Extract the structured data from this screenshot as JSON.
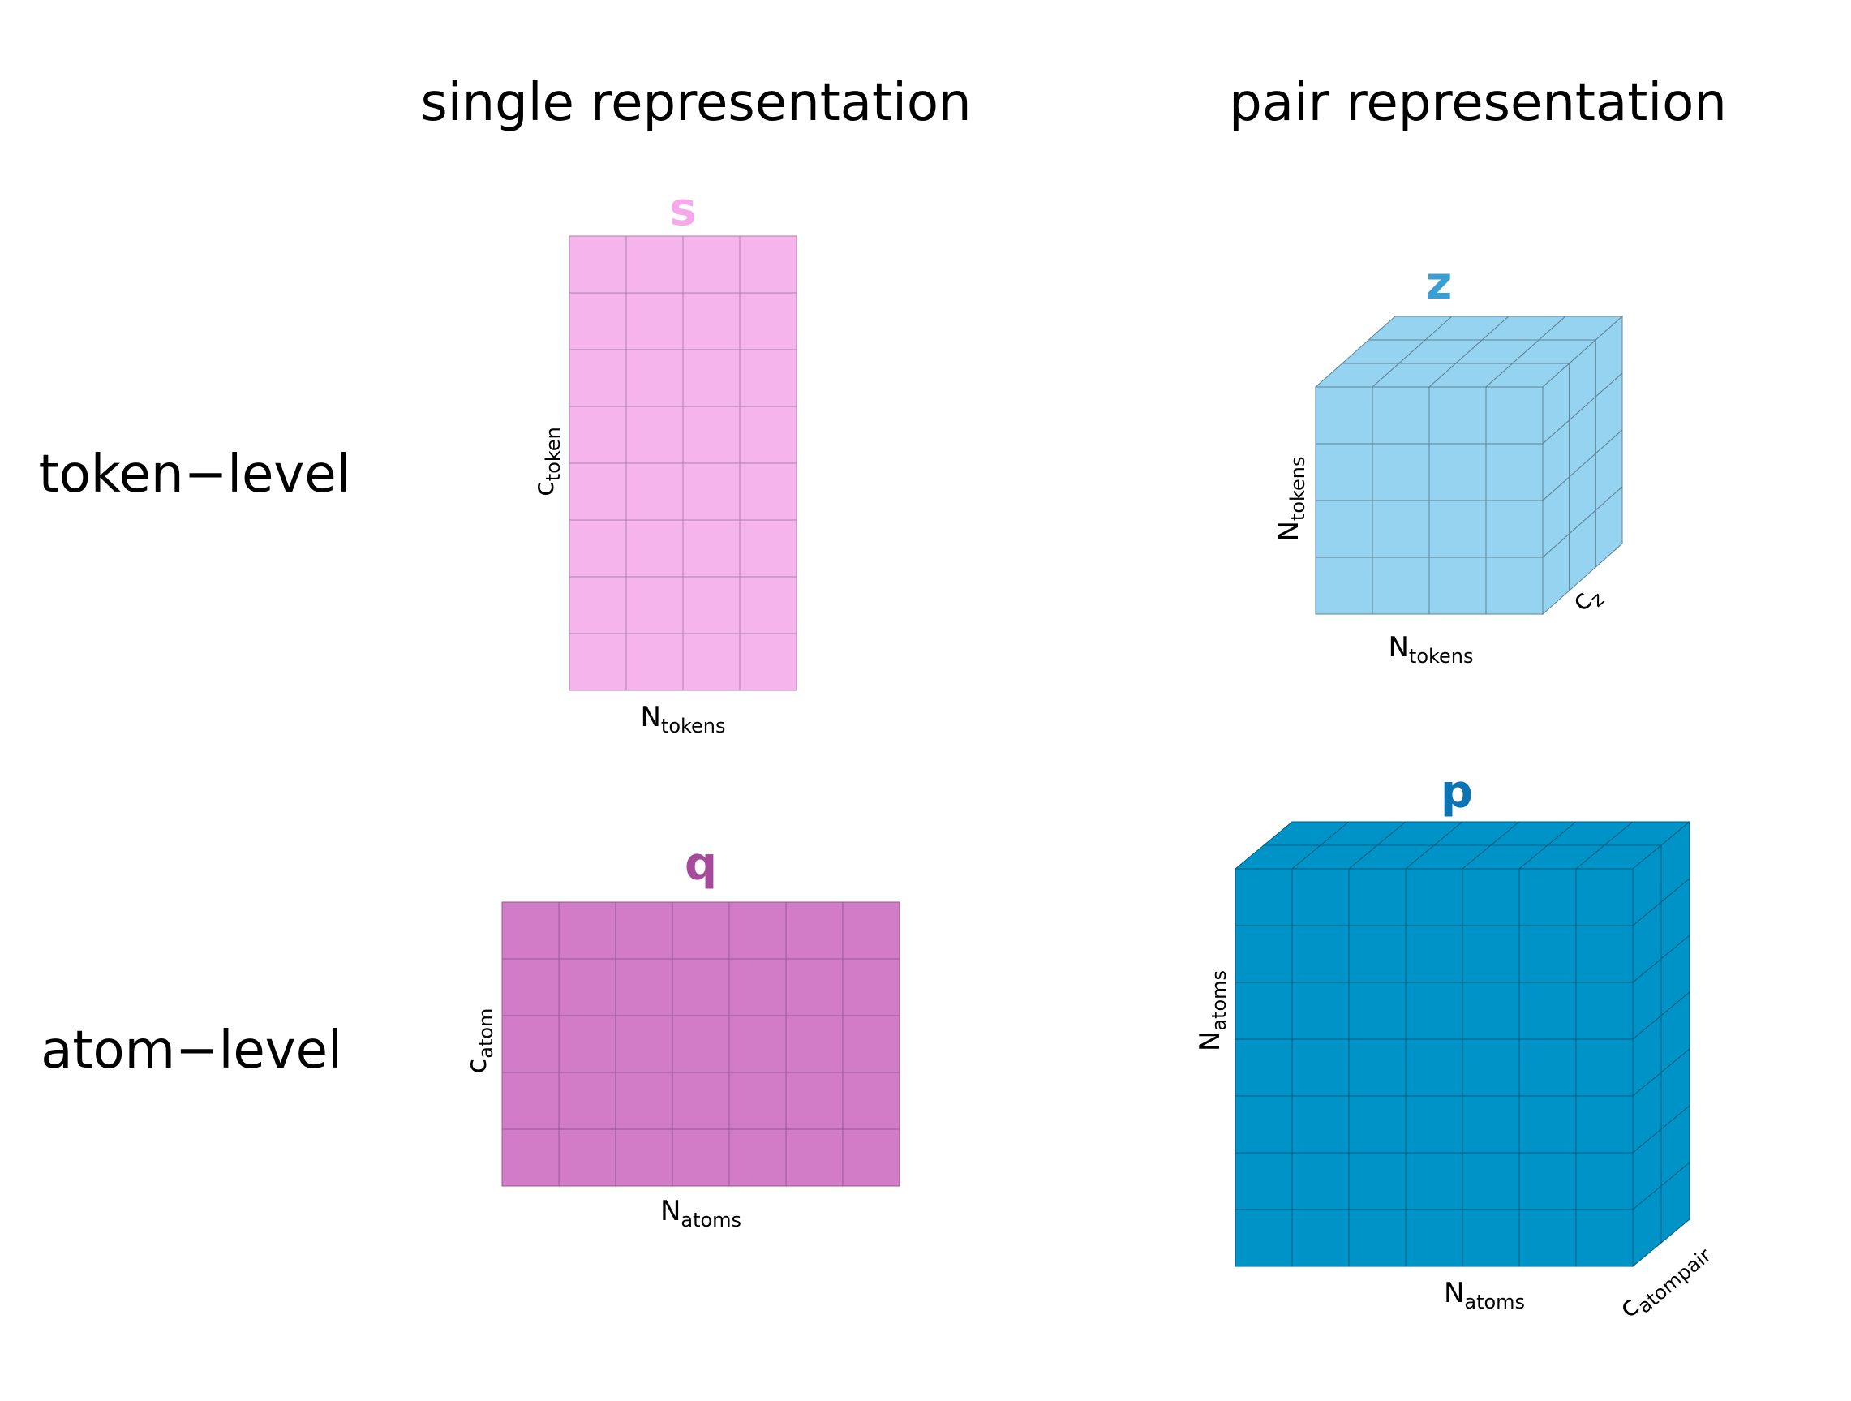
{
  "headers": {
    "single": "single representation",
    "pair": "pair representation",
    "token_level": "token−level",
    "atom_level": "atom−level"
  },
  "tensors": {
    "s": {
      "symbol": "s",
      "color": "#f5b4ec",
      "symbol_color": "#f7a8ea",
      "grid": {
        "cols": 4,
        "rows": 8
      },
      "xlabel": {
        "main": "N",
        "sub": "tokens"
      },
      "ylabel": {
        "main": "c",
        "sub": "token"
      }
    },
    "q": {
      "symbol": "q",
      "color": "#d27cc8",
      "symbol_color": "#a64b9c",
      "grid": {
        "cols": 7,
        "rows": 5
      },
      "xlabel": {
        "main": "N",
        "sub": "atoms"
      },
      "ylabel": {
        "main": "c",
        "sub": "atom"
      }
    },
    "z": {
      "symbol": "z",
      "color": "#96d3f0",
      "symbol_color": "#3a9fd4",
      "grid": {
        "cols": 4,
        "rows": 4,
        "depth": 3
      },
      "xlabel": {
        "main": "N",
        "sub": "tokens"
      },
      "ylabel": {
        "main": "N",
        "sub": "tokens"
      },
      "zlabel": {
        "main": "c",
        "sub": "z"
      }
    },
    "p": {
      "symbol": "p",
      "color": "#0093c8",
      "symbol_color": "#0a74b4",
      "grid": {
        "cols": 7,
        "rows": 7,
        "depth": 2
      },
      "xlabel": {
        "main": "N",
        "sub": "atoms"
      },
      "ylabel": {
        "main": "N",
        "sub": "atoms"
      },
      "zlabel": {
        "main": "c",
        "sub": "atompair"
      }
    }
  }
}
